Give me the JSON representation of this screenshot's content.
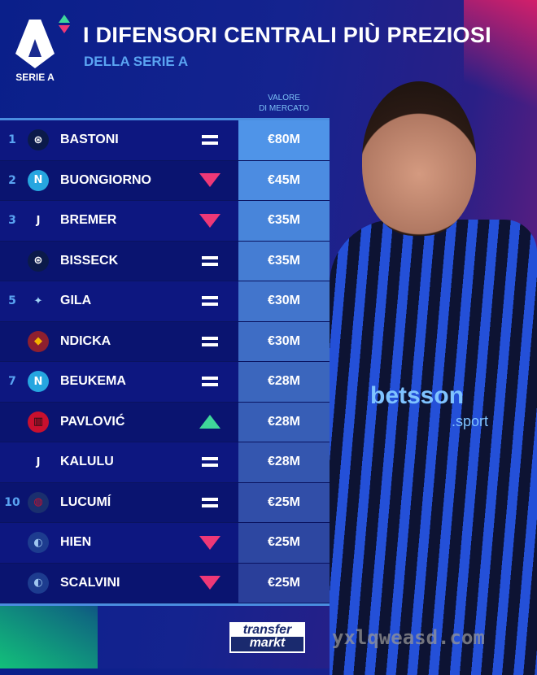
{
  "header": {
    "logo_label": "SERIE A",
    "title": "I DIFENSORI CENTRALI PIÙ PREZIOSI",
    "subtitle": "DELLA SERIE A"
  },
  "column_header": {
    "line1": "VALORE",
    "line2": "DI MERCATO"
  },
  "rows": [
    {
      "rank": "1",
      "club": "Inter",
      "name": "BASTONI",
      "trend": "same",
      "value": "€80M"
    },
    {
      "rank": "2",
      "club": "Napoli",
      "name": "BUONGIORNO",
      "trend": "down",
      "value": "€45M"
    },
    {
      "rank": "3",
      "club": "Juventus",
      "name": "BREMER",
      "trend": "down",
      "value": "€35M"
    },
    {
      "rank": "",
      "club": "Inter",
      "name": "BISSECK",
      "trend": "same",
      "value": "€35M"
    },
    {
      "rank": "5",
      "club": "Lazio",
      "name": "GILA",
      "trend": "same",
      "value": "€30M"
    },
    {
      "rank": "",
      "club": "Roma",
      "name": "NDICKA",
      "trend": "same",
      "value": "€30M"
    },
    {
      "rank": "7",
      "club": "Napoli",
      "name": "BEUKEMA",
      "trend": "same",
      "value": "€28M"
    },
    {
      "rank": "",
      "club": "Milan",
      "name": "PAVLOVIĆ",
      "trend": "up",
      "value": "€28M"
    },
    {
      "rank": "",
      "club": "Juventus",
      "name": "KALULU",
      "trend": "same",
      "value": "€28M"
    },
    {
      "rank": "10",
      "club": "Bologna",
      "name": "LUCUMÍ",
      "trend": "same",
      "value": "€25M"
    },
    {
      "rank": "",
      "club": "Atalanta",
      "name": "HIEN",
      "trend": "down",
      "value": "€25M"
    },
    {
      "rank": "",
      "club": "Atalanta",
      "name": "SCALVINI",
      "trend": "down",
      "value": "€25M"
    }
  ],
  "jersey": {
    "sponsor": "betsson",
    "sponsor_sub": ".sport"
  },
  "footer": {
    "brand_line1": "transfer",
    "brand_line2": "markt",
    "watermark": "yxlqweasd.com"
  },
  "colors": {
    "trend_up": "#3fd79a",
    "trend_down": "#ee3877",
    "accent": "#5aa4f2",
    "value_box_top": "#4f94e8",
    "value_box_bottom": "#2a3f9a"
  }
}
